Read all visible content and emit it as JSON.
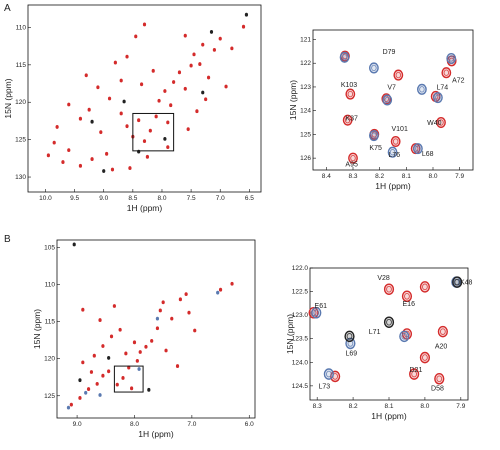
{
  "chart_data": [
    {
      "type": "scatter",
      "panel": "A",
      "xlabel": "1H (ppm)",
      "ylabel": "15N (ppm)",
      "xlim": [
        10.3,
        6.3
      ],
      "ylim": [
        107,
        132
      ],
      "x_ticks": [
        10.0,
        9.5,
        9.0,
        8.5,
        8.0,
        7.5,
        7.0,
        6.5
      ],
      "y_ticks": [
        110,
        115,
        120,
        125,
        130
      ],
      "zoom_box": {
        "x": [
          8.5,
          7.8
        ],
        "y": [
          121.5,
          126.5
        ]
      },
      "series": [
        {
          "color": "#d42b2b",
          "points": [
            [
              9.95,
              127.1
            ],
            [
              9.7,
              128.0
            ],
            [
              9.6,
              126.4
            ],
            [
              9.4,
              128.5
            ],
            [
              9.2,
              127.6
            ],
            [
              9.05,
              124.0
            ],
            [
              8.95,
              126.9
            ],
            [
              8.85,
              129.0
            ],
            [
              8.7,
              121.5
            ],
            [
              8.6,
              123.2
            ],
            [
              8.5,
              124.6
            ],
            [
              8.4,
              122.4
            ],
            [
              8.3,
              125.2
            ],
            [
              8.2,
              123.8
            ],
            [
              8.1,
              121.9
            ],
            [
              8.05,
              119.8
            ],
            [
              7.95,
              118.5
            ],
            [
              7.9,
              122.7
            ],
            [
              7.85,
              120.4
            ],
            [
              7.8,
              117.3
            ],
            [
              7.7,
              116.0
            ],
            [
              7.6,
              118.2
            ],
            [
              7.5,
              115.1
            ],
            [
              7.45,
              113.6
            ],
            [
              7.35,
              114.9
            ],
            [
              7.3,
              112.3
            ],
            [
              7.2,
              116.7
            ],
            [
              7.1,
              113.0
            ],
            [
              7.0,
              111.5
            ],
            [
              6.9,
              117.9
            ],
            [
              6.8,
              112.8
            ],
            [
              6.6,
              109.9
            ],
            [
              8.9,
              119.5
            ],
            [
              9.1,
              118.0
            ],
            [
              9.25,
              121.0
            ],
            [
              9.4,
              122.2
            ],
            [
              9.6,
              120.3
            ],
            [
              9.8,
              123.3
            ],
            [
              8.35,
              117.6
            ],
            [
              8.15,
              115.8
            ],
            [
              8.6,
              113.9
            ],
            [
              8.45,
              111.2
            ],
            [
              8.3,
              109.6
            ],
            [
              7.6,
              111.1
            ],
            [
              8.8,
              114.7
            ],
            [
              9.3,
              116.4
            ],
            [
              8.7,
              117.1
            ],
            [
              8.25,
              127.3
            ],
            [
              7.9,
              126.0
            ],
            [
              7.55,
              123.6
            ],
            [
              7.4,
              121.2
            ],
            [
              7.25,
              119.6
            ],
            [
              8.55,
              128.8
            ],
            [
              9.85,
              125.4
            ]
          ]
        },
        {
          "color": "#222222",
          "points": [
            [
              9.2,
              122.6
            ],
            [
              8.65,
              119.9
            ],
            [
              7.95,
              124.9
            ],
            [
              7.3,
              118.7
            ],
            [
              9.0,
              129.2
            ],
            [
              7.15,
              110.6
            ],
            [
              8.4,
              126.6
            ],
            [
              6.55,
              108.3
            ]
          ]
        }
      ]
    },
    {
      "type": "scatter",
      "panel": "A-zoom",
      "xlabel": "1H (ppm)",
      "ylabel": "15N (ppm)",
      "xlim": [
        8.45,
        7.85
      ],
      "ylim": [
        120.6,
        126.5
      ],
      "x_ticks": [
        8.4,
        8.3,
        8.2,
        8.1,
        8.0,
        7.9
      ],
      "y_ticks": [
        121,
        122,
        123,
        124,
        125,
        126
      ],
      "series": [
        {
          "color": "#d42b2b",
          "points": [
            [
              8.33,
              121.7
            ],
            [
              8.31,
              123.3
            ],
            [
              8.32,
              124.4
            ],
            [
              8.3,
              126.0
            ],
            [
              8.22,
              125.0
            ],
            [
              8.175,
              123.5
            ],
            [
              8.13,
              122.5
            ],
            [
              8.14,
              125.3
            ],
            [
              8.065,
              125.6
            ],
            [
              7.95,
              122.4
            ],
            [
              7.97,
              124.5
            ],
            [
              7.99,
              123.4
            ],
            [
              7.93,
              121.9
            ]
          ]
        },
        {
          "color": "#5a79b0",
          "points": [
            [
              8.335,
              121.75
            ],
            [
              8.225,
              122.2
            ],
            [
              8.175,
              123.55
            ],
            [
              8.225,
              125.05
            ],
            [
              8.155,
              125.75
            ],
            [
              8.045,
              123.1
            ],
            [
              7.985,
              123.45
            ],
            [
              8.06,
              125.6
            ],
            [
              7.935,
              121.8
            ]
          ]
        }
      ],
      "labels": [
        {
          "text": "D79",
          "x": 8.165,
          "y": 121.5
        },
        {
          "text": "A72",
          "x": 7.905,
          "y": 122.7
        },
        {
          "text": "K103",
          "x": 8.315,
          "y": 122.9
        },
        {
          "text": "V7",
          "x": 8.155,
          "y": 123.0
        },
        {
          "text": "L74",
          "x": 7.965,
          "y": 123.0
        },
        {
          "text": "K37",
          "x": 8.305,
          "y": 124.3
        },
        {
          "text": "W40",
          "x": 7.995,
          "y": 124.5
        },
        {
          "text": "V101",
          "x": 8.125,
          "y": 124.75
        },
        {
          "text": "K75",
          "x": 8.215,
          "y": 125.55
        },
        {
          "text": "L76",
          "x": 8.145,
          "y": 125.85
        },
        {
          "text": "L68",
          "x": 8.02,
          "y": 125.8
        },
        {
          "text": "A95",
          "x": 8.305,
          "y": 126.25
        }
      ]
    },
    {
      "type": "scatter",
      "panel": "B",
      "xlabel": "1H (ppm)",
      "ylabel": "15N (ppm)",
      "xlim": [
        9.35,
        5.9
      ],
      "ylim": [
        104,
        128
      ],
      "x_ticks": [
        9.0,
        8.0,
        7.0,
        6.0
      ],
      "y_ticks": [
        105,
        110,
        115,
        120,
        125
      ],
      "zoom_box": {
        "x": [
          8.35,
          7.85
        ],
        "y": [
          121,
          124.5
        ]
      },
      "series": [
        {
          "color": "#d42b2b",
          "points": [
            [
              9.1,
              126.2
            ],
            [
              8.95,
              125.3
            ],
            [
              8.8,
              124.1
            ],
            [
              8.65,
              123.4
            ],
            [
              8.55,
              122.3
            ],
            [
              8.45,
              121.7
            ],
            [
              8.3,
              123.5
            ],
            [
              8.2,
              122.6
            ],
            [
              8.1,
              121.2
            ],
            [
              8.05,
              124.0
            ],
            [
              7.95,
              120.3
            ],
            [
              7.9,
              119.1
            ],
            [
              7.8,
              118.4
            ],
            [
              7.7,
              117.6
            ],
            [
              7.6,
              115.9
            ],
            [
              7.55,
              113.5
            ],
            [
              7.5,
              112.4
            ],
            [
              7.35,
              114.6
            ],
            [
              7.2,
              112.0
            ],
            [
              7.1,
              111.3
            ],
            [
              7.05,
              113.8
            ],
            [
              6.95,
              116.2
            ],
            [
              8.7,
              119.6
            ],
            [
              8.55,
              118.3
            ],
            [
              8.4,
              117.0
            ],
            [
              8.25,
              116.1
            ],
            [
              8.6,
              114.8
            ],
            [
              8.9,
              113.4
            ],
            [
              8.35,
              112.9
            ],
            [
              8.75,
              121.8
            ],
            [
              8.9,
              120.5
            ],
            [
              7.45,
              118.9
            ],
            [
              7.25,
              121.0
            ],
            [
              6.5,
              110.7
            ],
            [
              6.3,
              109.9
            ],
            [
              8.15,
              119.3
            ],
            [
              8.0,
              117.8
            ]
          ]
        },
        {
          "color": "#5a79b0",
          "points": [
            [
              9.15,
              126.6
            ],
            [
              8.85,
              124.6
            ],
            [
              8.6,
              124.9
            ],
            [
              7.92,
              121.4
            ],
            [
              7.6,
              114.6
            ],
            [
              6.55,
              111.1
            ]
          ]
        },
        {
          "color": "#222222",
          "points": [
            [
              9.05,
              104.6
            ],
            [
              8.95,
              122.9
            ],
            [
              7.75,
              124.2
            ],
            [
              8.45,
              119.9
            ]
          ]
        }
      ]
    },
    {
      "type": "scatter",
      "panel": "B-zoom",
      "xlabel": "1H (ppm)",
      "ylabel": "15N (ppm)",
      "xlim": [
        8.32,
        7.88
      ],
      "ylim": [
        122.0,
        124.8
      ],
      "x_ticks": [
        8.3,
        8.2,
        8.1,
        8.0,
        7.9
      ],
      "y_ticks": [
        122.0,
        122.5,
        123.0,
        123.5,
        124.0,
        124.5
      ],
      "series": [
        {
          "color": "#d42b2b",
          "points": [
            [
              8.1,
              122.45
            ],
            [
              8.05,
              122.6
            ],
            [
              8.0,
              122.4
            ],
            [
              8.31,
              122.95
            ],
            [
              8.05,
              123.4
            ],
            [
              7.95,
              123.35
            ],
            [
              8.0,
              123.9
            ],
            [
              8.03,
              124.25
            ],
            [
              7.96,
              124.35
            ],
            [
              8.25,
              124.3
            ]
          ]
        },
        {
          "color": "#5a79b0",
          "points": [
            [
              7.915,
              122.3
            ],
            [
              8.305,
              122.95
            ],
            [
              8.21,
              123.6
            ],
            [
              8.27,
              124.25
            ],
            [
              8.06,
              123.45
            ]
          ]
        },
        {
          "color": "#222222",
          "points": [
            [
              7.915,
              122.3
            ],
            [
              8.215,
              123.45
            ],
            [
              8.105,
              123.15
            ]
          ]
        }
      ],
      "labels": [
        {
          "text": "V28",
          "x": 8.115,
          "y": 122.2
        },
        {
          "text": "K48",
          "x": 7.885,
          "y": 122.3
        },
        {
          "text": "E16",
          "x": 8.045,
          "y": 122.75
        },
        {
          "text": "E61",
          "x": 8.29,
          "y": 122.8
        },
        {
          "text": "L71",
          "x": 8.14,
          "y": 123.35
        },
        {
          "text": "L69",
          "x": 8.205,
          "y": 123.8
        },
        {
          "text": "A20",
          "x": 7.955,
          "y": 123.65
        },
        {
          "text": "D21",
          "x": 8.025,
          "y": 124.15
        },
        {
          "text": "L73",
          "x": 8.28,
          "y": 124.5
        },
        {
          "text": "D58",
          "x": 7.965,
          "y": 124.55
        }
      ]
    }
  ],
  "panels": {
    "A": {
      "letter": "A"
    },
    "B": {
      "letter": "B"
    }
  }
}
